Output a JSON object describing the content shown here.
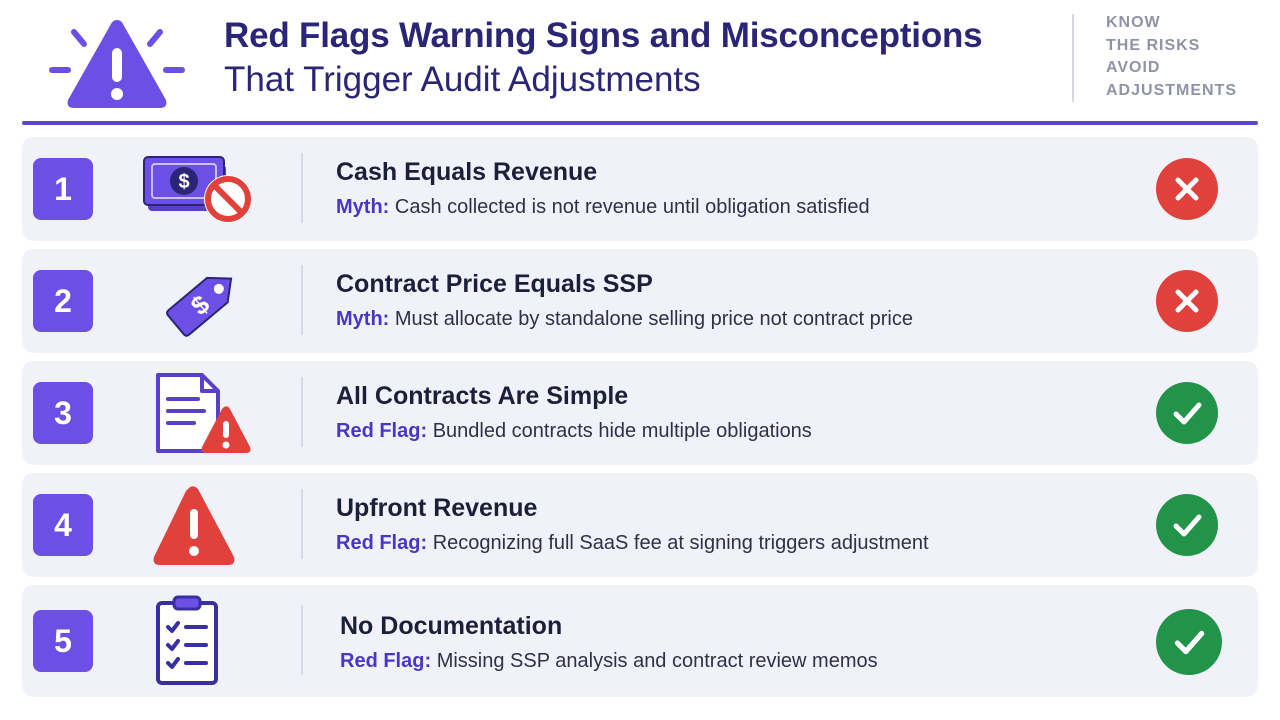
{
  "header": {
    "title_line1": "Red Flags Warning Signs and Misconceptions",
    "title_line2": "That Trigger Audit Adjustments",
    "tagline": [
      "KNOW",
      "THE RISKS",
      "AVOID",
      "ADJUSTMENTS"
    ],
    "logo_icon": "warning-triangle-icon"
  },
  "colors": {
    "accent": "#6c4fe4",
    "title": "#2a2577",
    "label": "#4a36c6",
    "row_bg": "#f1f2f9",
    "error_red": "#e0423b",
    "success_green": "#22944a"
  },
  "items": [
    {
      "number": "1",
      "icon": "cash-prohibited-icon",
      "title": "Cash Equals Revenue",
      "label": "Myth:",
      "text": "Cash collected is not revenue until obligation satisfied",
      "status": "x"
    },
    {
      "number": "2",
      "icon": "price-tag-icon",
      "title": "Contract Price Equals SSP",
      "label": "Myth:",
      "text": "Must allocate by standalone selling price not contract price",
      "status": "x"
    },
    {
      "number": "3",
      "icon": "document-warning-icon",
      "title": "All Contracts Are Simple",
      "label": "Red Flag:",
      "text": "Bundled contracts hide multiple obligations",
      "status": "check"
    },
    {
      "number": "4",
      "icon": "warning-triangle-icon",
      "title": "Upfront Revenue",
      "label": "Red Flag:",
      "text": "Recognizing full SaaS fee at signing triggers adjustment",
      "status": "check"
    },
    {
      "number": "5",
      "icon": "clipboard-checklist-icon",
      "title": "No Documentation",
      "label": "Red Flag:",
      "text": "Missing SSP analysis and contract review memos",
      "status": "check"
    }
  ]
}
